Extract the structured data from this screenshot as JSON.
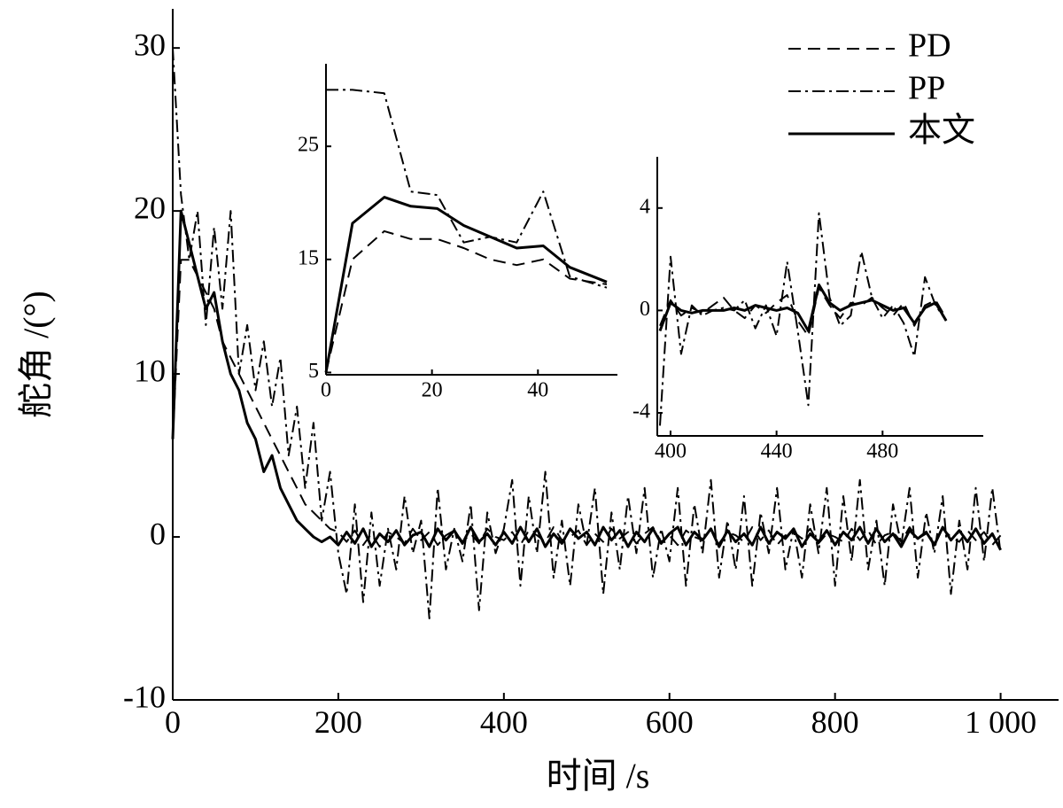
{
  "chart_data": [
    {
      "type": "line",
      "xlabel": "时间 /s",
      "ylabel": "舵角 /(°)",
      "legend": "upper right",
      "xlim": [
        0,
        1070
      ],
      "ylim": [
        -10,
        32.4
      ],
      "xticks": [
        0,
        200,
        400,
        600,
        800,
        {
          "value": 1000,
          "label": "1 000"
        }
      ],
      "yticks": [
        -10,
        0,
        10,
        20,
        30
      ],
      "x": [
        0,
        10,
        20,
        30,
        40,
        50,
        60,
        70,
        80,
        90,
        100,
        110,
        120,
        130,
        140,
        150,
        160,
        170,
        180,
        190,
        200,
        210,
        220,
        230,
        240,
        250,
        260,
        270,
        280,
        290,
        300,
        310,
        320,
        330,
        340,
        350,
        360,
        370,
        380,
        390,
        400,
        410,
        420,
        430,
        440,
        450,
        460,
        470,
        480,
        490,
        500,
        510,
        520,
        530,
        540,
        550,
        560,
        570,
        580,
        590,
        600,
        610,
        620,
        630,
        640,
        650,
        660,
        670,
        680,
        690,
        700,
        710,
        720,
        730,
        740,
        750,
        760,
        770,
        780,
        790,
        800,
        810,
        820,
        830,
        840,
        850,
        860,
        870,
        880,
        890,
        900,
        910,
        920,
        930,
        940,
        950,
        960,
        970,
        980,
        990,
        1000
      ],
      "series": [
        {
          "name": "PD",
          "color": "#000000",
          "dash": "dashed",
          "values": [
            6,
            17,
            17,
            16,
            15,
            14,
            12,
            11,
            10,
            9,
            8,
            7,
            6,
            5,
            4,
            3,
            2,
            1.5,
            1,
            0.5,
            0.3,
            -0.3,
            0.4,
            -0.5,
            0.2,
            -0.6,
            0.3,
            0,
            -0.4,
            0.5,
            -0.2,
            0.3,
            -0.5,
            0.1,
            0.4,
            -0.3,
            0.2,
            -0.4,
            0.5,
            0,
            -0.2,
            0.3,
            -0.5,
            0.4,
            0.1,
            -0.3,
            0.6,
            -0.2,
            0,
            0.4,
            -0.5,
            0.2,
            -0.3,
            0.5,
            -0.1,
            0.3,
            -0.4,
            0.2,
            0.6,
            -0.3,
            0.1,
            -0.5,
            0.4,
            0,
            -0.2,
            0.5,
            -0.4,
            0.3,
            0.1,
            -0.3,
            0.6,
            -0.2,
            0.4,
            -0.5,
            0.1,
            0.3,
            -0.1,
            0.5,
            -0.4,
            0.2,
            0,
            -0.3,
            0.5,
            -0.2,
            0.4,
            -0.5,
            0.1,
            0.3,
            -0.3,
            0.6,
            -0.1,
            0.2,
            -0.4,
            0.5,
            0,
            -0.3,
            0.4,
            -0.2,
            0.3,
            -0.5,
            0.1
          ]
        },
        {
          "name": "PP",
          "color": "#000000",
          "dash": "dashdot",
          "values": [
            30,
            21,
            17,
            20,
            13,
            19,
            14,
            20,
            10,
            13,
            9,
            12,
            8,
            11,
            5,
            8,
            3,
            7,
            1,
            4,
            -1,
            -3.5,
            2,
            -4,
            1.5,
            -3,
            0.5,
            -2,
            2.5,
            -1,
            1,
            -5,
            3,
            -2,
            0.5,
            -1.5,
            2,
            -4.5,
            1.5,
            -1,
            0.5,
            3.5,
            -3,
            2.5,
            -1,
            4,
            -2.5,
            1,
            -3,
            2,
            -0.5,
            3,
            -3.5,
            1.5,
            -2,
            2.5,
            -1,
            3,
            -2.5,
            0.5,
            -1.5,
            3,
            -3,
            2,
            -1,
            3.5,
            -2.5,
            1,
            -2,
            2.5,
            -3,
            1.5,
            -1,
            3,
            -2,
            0.5,
            -2.5,
            2,
            -1,
            3,
            -3,
            2.5,
            -1.5,
            3.5,
            -2,
            1,
            -3,
            2,
            -0.5,
            3,
            -2.5,
            1.5,
            -1,
            2.5,
            -3.5,
            1,
            -2,
            3,
            -1.5,
            3,
            -1
          ]
        },
        {
          "name": "本文",
          "color": "#000000",
          "dash": "solid",
          "values": [
            6,
            20,
            18,
            16,
            14,
            15,
            12,
            10,
            9,
            7,
            6,
            4,
            5,
            3,
            2,
            1,
            0.5,
            0,
            -0.3,
            0,
            -0.5,
            0.3,
            -0.4,
            0.5,
            -0.6,
            0.2,
            -0.3,
            0.4,
            -0.5,
            0.1,
            0.3,
            -0.6,
            0.5,
            -0.2,
            0.4,
            -0.4,
            0.6,
            -0.3,
            0.2,
            -0.5,
            0.3,
            -0.4,
            0.6,
            -0.3,
            0.5,
            -0.6,
            0.2,
            -0.4,
            0.5,
            -0.1,
            0.3,
            -0.5,
            0.6,
            -0.2,
            0.4,
            -0.6,
            0.3,
            -0.3,
            0.5,
            -0.4,
            0.2,
            0.6,
            -0.5,
            0.3,
            -0.2,
            0.5,
            -0.6,
            0.4,
            -0.3,
            0.2,
            -0.5,
            0.6,
            -0.4,
            0.3,
            -0.1,
            0.5,
            -0.6,
            0.2,
            -0.3,
            0.4,
            -0.5,
            0.3,
            -0.2,
            0.6,
            -0.4,
            0.5,
            -0.3,
            0.2,
            -0.6,
            0.4,
            -0.1,
            0.3,
            -0.5,
            0.6,
            -0.2,
            0.4,
            -0.3,
            0.5,
            -0.4,
            0.2,
            -0.8
          ]
        }
      ]
    },
    {
      "type": "line",
      "xlim": [
        0,
        55
      ],
      "ylim": [
        4.8,
        32.3
      ],
      "xticks": [
        0,
        20,
        40
      ],
      "yticks": [
        5,
        15,
        25
      ],
      "x": [
        0,
        5,
        11,
        16,
        21,
        26,
        31,
        36,
        41,
        46,
        53
      ],
      "series": [
        {
          "color": "#000000",
          "dash": "dashed",
          "values": [
            5,
            15,
            17.5,
            16.8,
            16.8,
            16,
            15,
            14.5,
            15,
            13.3,
            12.8
          ]
        },
        {
          "color": "#000000",
          "dash": "dashdot",
          "values": [
            30,
            30,
            29.7,
            21,
            20.7,
            16.5,
            17,
            16.5,
            21,
            13.5,
            12.5
          ]
        },
        {
          "color": "#000000",
          "dash": "solid",
          "values": [
            5,
            18.2,
            20.5,
            19.7,
            19.5,
            18,
            17,
            16,
            16.2,
            14.3,
            13
          ]
        }
      ]
    },
    {
      "type": "line",
      "xlim": [
        395,
        518
      ],
      "ylim": [
        -4.9,
        6
      ],
      "xticks": [
        400,
        440,
        480
      ],
      "yticks": [
        -4,
        0,
        4
      ],
      "x": [
        396,
        400,
        404,
        408,
        412,
        416,
        420,
        424,
        428,
        432,
        436,
        440,
        444,
        448,
        452,
        456,
        460,
        464,
        468,
        472,
        476,
        480,
        484,
        488,
        492,
        496,
        500,
        504
      ],
      "series": [
        {
          "color": "#000000",
          "dash": "dashed",
          "values": [
            -0.6,
            0.4,
            -0.2,
            0.1,
            -0.1,
            0.2,
            0.5,
            0,
            -0.3,
            0.2,
            -0.1,
            0.3,
            0.6,
            -0.4,
            -1,
            0.9,
            0.2,
            -0.3,
            0.3,
            0.2,
            0.5,
            0.1,
            -0.2,
            0.3,
            -0.6,
            0.2,
            0.4,
            -0.3
          ]
        },
        {
          "color": "#000000",
          "dash": "dashdot",
          "values": [
            -4.5,
            2.1,
            -1.7,
            0.2,
            -0.2,
            0,
            0.1,
            0,
            0.4,
            -0.7,
            0.2,
            -1,
            1.9,
            -0.8,
            -3.7,
            3.8,
            0.5,
            -0.6,
            -0.2,
            2.3,
            0.5,
            -0.3,
            0.2,
            -0.5,
            -1.8,
            1.3,
            0.2,
            -0.4
          ]
        },
        {
          "color": "#000000",
          "dash": "solid",
          "values": [
            -0.8,
            0.3,
            0,
            -0.1,
            0,
            0,
            0,
            0.1,
            0,
            0.2,
            0.1,
            0,
            0.1,
            -0.1,
            -0.8,
            1,
            0.3,
            0,
            0.2,
            0.3,
            0.4,
            0.2,
            0,
            0.1,
            -0.5,
            0.1,
            0.3,
            -0.4
          ]
        }
      ]
    }
  ]
}
